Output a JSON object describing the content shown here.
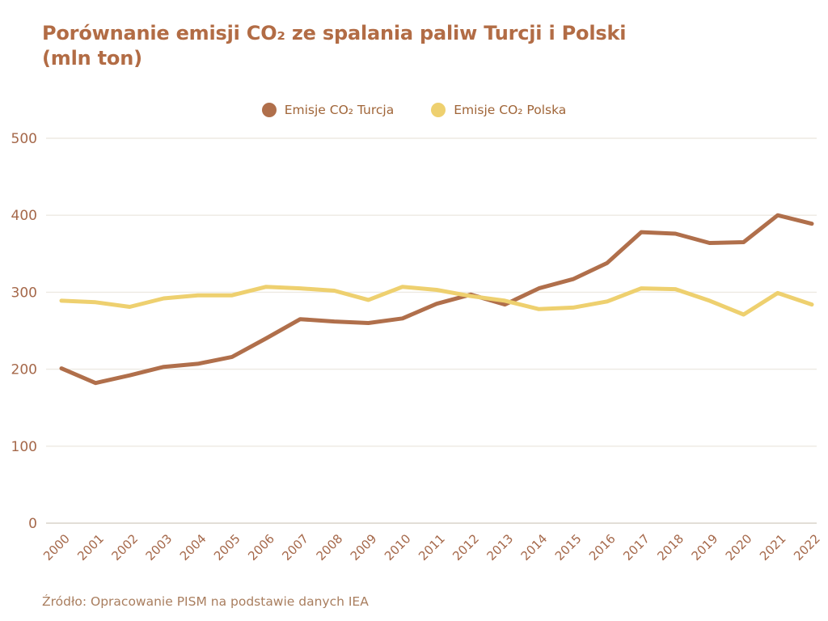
{
  "title": {
    "line1": "Porównanie emisji CO₂ ze spalania paliw Turcji i Polski",
    "line2": "(mln ton)"
  },
  "legend": [
    {
      "label": "Emisje CO₂ Turcja",
      "color": "#b06f4b"
    },
    {
      "label": "Emisje CO₂ Polska",
      "color": "#eed06f"
    }
  ],
  "source": "Źródło: Opracowanie PISM na podstawie danych IEA",
  "colors": {
    "title_text": "#b26c45",
    "legend_text": "#a06538",
    "tick_text": "#a5684a",
    "grid": "#edeae2",
    "axis_zero": "#d8d4ca",
    "source_text": "#a97e5f",
    "background": "#ffffff"
  },
  "chart_data": {
    "type": "line",
    "title": "Porównanie emisji CO₂ ze spalania paliw Turcji i Polski (mln ton)",
    "x": [
      2000,
      2001,
      2002,
      2003,
      2004,
      2005,
      2006,
      2007,
      2008,
      2009,
      2010,
      2011,
      2012,
      2013,
      2014,
      2015,
      2016,
      2017,
      2018,
      2019,
      2020,
      2021,
      2022
    ],
    "series": [
      {
        "name": "Emisje CO₂ Turcja",
        "color": "#b06f4b",
        "values": [
          201,
          182,
          192,
          203,
          207,
          216,
          240,
          265,
          262,
          260,
          266,
          285,
          297,
          284,
          305,
          317,
          338,
          378,
          376,
          364,
          365,
          400,
          389
        ]
      },
      {
        "name": "Emisje CO₂ Polska",
        "color": "#eed06f",
        "values": [
          289,
          287,
          281,
          292,
          296,
          296,
          307,
          305,
          302,
          290,
          307,
          303,
          295,
          289,
          278,
          280,
          288,
          305,
          304,
          289,
          271,
          299,
          284
        ]
      }
    ],
    "ylabel": "",
    "xlabel": "",
    "ylim": [
      0,
      500
    ],
    "yticks": [
      0,
      100,
      200,
      300,
      400,
      500
    ],
    "grid": "horizontal",
    "legend_position": "top-center",
    "line_width": 5
  }
}
